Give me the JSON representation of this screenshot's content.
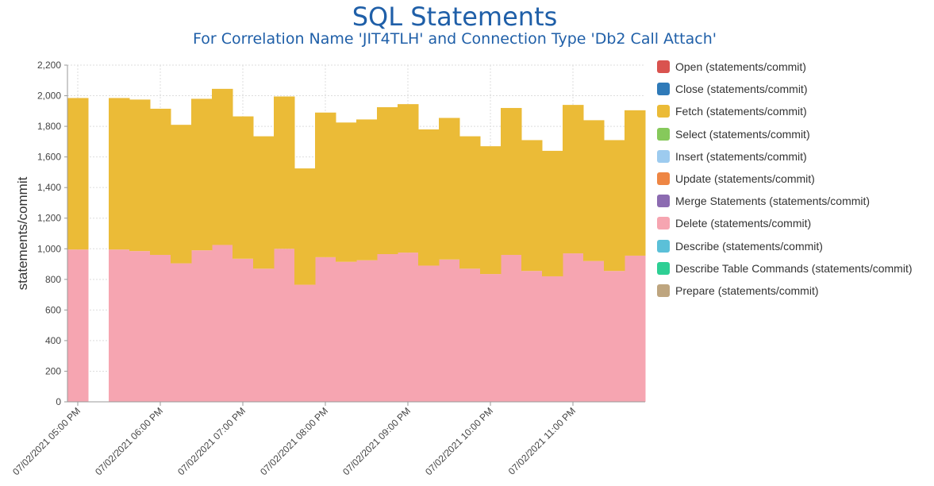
{
  "chart_data": {
    "type": "area",
    "title": "SQL Statements",
    "subtitle": "For Correlation Name 'JIT4TLH' and Connection Type 'Db2 Call Attach'",
    "ylabel": "statements/commit",
    "xlabel": "",
    "ylim": [
      0,
      2200
    ],
    "yticks": [
      "0",
      "200",
      "400",
      "600",
      "800",
      "1,000",
      "1,200",
      "1,400",
      "1,600",
      "1,800",
      "2,000",
      "2,200"
    ],
    "xticks": [
      "07/02/2021 05:00 PM",
      "07/02/2021 06:00 PM",
      "07/02/2021 07:00 PM",
      "07/02/2021 08:00 PM",
      "07/02/2021 09:00 PM",
      "07/02/2021 10:00 PM",
      "07/02/2021 11:00 PM"
    ],
    "grid": true,
    "stacked": true,
    "legend_position": "right",
    "interval_minutes": 15,
    "x": [
      "05:00 PM",
      "05:15 PM",
      "05:30 PM",
      "05:45 PM",
      "06:00 PM",
      "06:15 PM",
      "06:30 PM",
      "06:45 PM",
      "07:00 PM",
      "07:15 PM",
      "07:30 PM",
      "07:45 PM",
      "08:00 PM",
      "08:15 PM",
      "08:30 PM",
      "08:45 PM",
      "09:00 PM",
      "09:15 PM",
      "09:30 PM",
      "09:45 PM",
      "10:00 PM",
      "10:15 PM",
      "10:30 PM",
      "10:45 PM",
      "11:00 PM",
      "11:15 PM",
      "11:30 PM",
      "11:45 PM"
    ],
    "series": [
      {
        "name": "Open (statements/commit)",
        "color": "#d9534f",
        "values": [
          0,
          null,
          0,
          0,
          0,
          0,
          0,
          0,
          0,
          0,
          0,
          0,
          0,
          0,
          0,
          0,
          0,
          0,
          0,
          0,
          0,
          0,
          0,
          0,
          0,
          0,
          0,
          0
        ]
      },
      {
        "name": "Close (statements/commit)",
        "color": "#2f7ab8",
        "values": [
          0,
          null,
          0,
          0,
          0,
          0,
          0,
          0,
          0,
          0,
          0,
          0,
          0,
          0,
          0,
          0,
          0,
          0,
          0,
          0,
          0,
          0,
          0,
          0,
          0,
          0,
          0,
          0
        ]
      },
      {
        "name": "Fetch (statements/commit)",
        "color": "#ebbb37",
        "values": [
          990,
          null,
          990,
          990,
          955,
          905,
          990,
          1020,
          930,
          865,
          995,
          760,
          945,
          910,
          920,
          960,
          970,
          890,
          925,
          865,
          835,
          960,
          855,
          820,
          970,
          920,
          855,
          950
        ]
      },
      {
        "name": "Select (statements/commit)",
        "color": "#86c95b",
        "values": [
          0,
          null,
          0,
          0,
          0,
          0,
          0,
          0,
          0,
          0,
          0,
          0,
          0,
          0,
          0,
          0,
          0,
          0,
          0,
          0,
          0,
          0,
          0,
          0,
          0,
          0,
          0,
          0
        ]
      },
      {
        "name": "Insert (statements/commit)",
        "color": "#9dcbef",
        "values": [
          0,
          null,
          0,
          0,
          0,
          0,
          0,
          0,
          0,
          0,
          0,
          0,
          0,
          0,
          0,
          0,
          0,
          0,
          0,
          0,
          0,
          0,
          0,
          0,
          0,
          0,
          0,
          0
        ]
      },
      {
        "name": "Update (statements/commit)",
        "color": "#ee8644",
        "values": [
          0,
          null,
          0,
          0,
          0,
          0,
          0,
          0,
          0,
          0,
          0,
          0,
          0,
          0,
          0,
          0,
          0,
          0,
          0,
          0,
          0,
          0,
          0,
          0,
          0,
          0,
          0,
          0
        ]
      },
      {
        "name": "Merge Statements (statements/commit)",
        "color": "#8c6bb1",
        "values": [
          0,
          null,
          0,
          0,
          0,
          0,
          0,
          0,
          0,
          0,
          0,
          0,
          0,
          0,
          0,
          0,
          0,
          0,
          0,
          0,
          0,
          0,
          0,
          0,
          0,
          0,
          0,
          0
        ]
      },
      {
        "name": "Delete (statements/commit)",
        "color": "#f6a5b1",
        "values": [
          995,
          null,
          995,
          985,
          960,
          905,
          990,
          1025,
          935,
          870,
          1000,
          765,
          945,
          915,
          925,
          965,
          975,
          890,
          930,
          870,
          835,
          960,
          855,
          820,
          970,
          920,
          855,
          955
        ]
      },
      {
        "name": "Describe (statements/commit)",
        "color": "#5bc0d8",
        "values": [
          0,
          null,
          0,
          0,
          0,
          0,
          0,
          0,
          0,
          0,
          0,
          0,
          0,
          0,
          0,
          0,
          0,
          0,
          0,
          0,
          0,
          0,
          0,
          0,
          0,
          0,
          0,
          0
        ]
      },
      {
        "name": "Describe Table Commands (statements/commit)",
        "color": "#2ecf94",
        "values": [
          0,
          null,
          0,
          0,
          0,
          0,
          0,
          0,
          0,
          0,
          0,
          0,
          0,
          0,
          0,
          0,
          0,
          0,
          0,
          0,
          0,
          0,
          0,
          0,
          0,
          0,
          0,
          0
        ]
      },
      {
        "name": "Prepare (statements/commit)",
        "color": "#bea57f",
        "values": [
          0,
          null,
          0,
          0,
          0,
          0,
          0,
          0,
          0,
          0,
          0,
          0,
          0,
          0,
          0,
          0,
          0,
          0,
          0,
          0,
          0,
          0,
          0,
          0,
          0,
          0,
          0,
          0
        ]
      }
    ]
  }
}
